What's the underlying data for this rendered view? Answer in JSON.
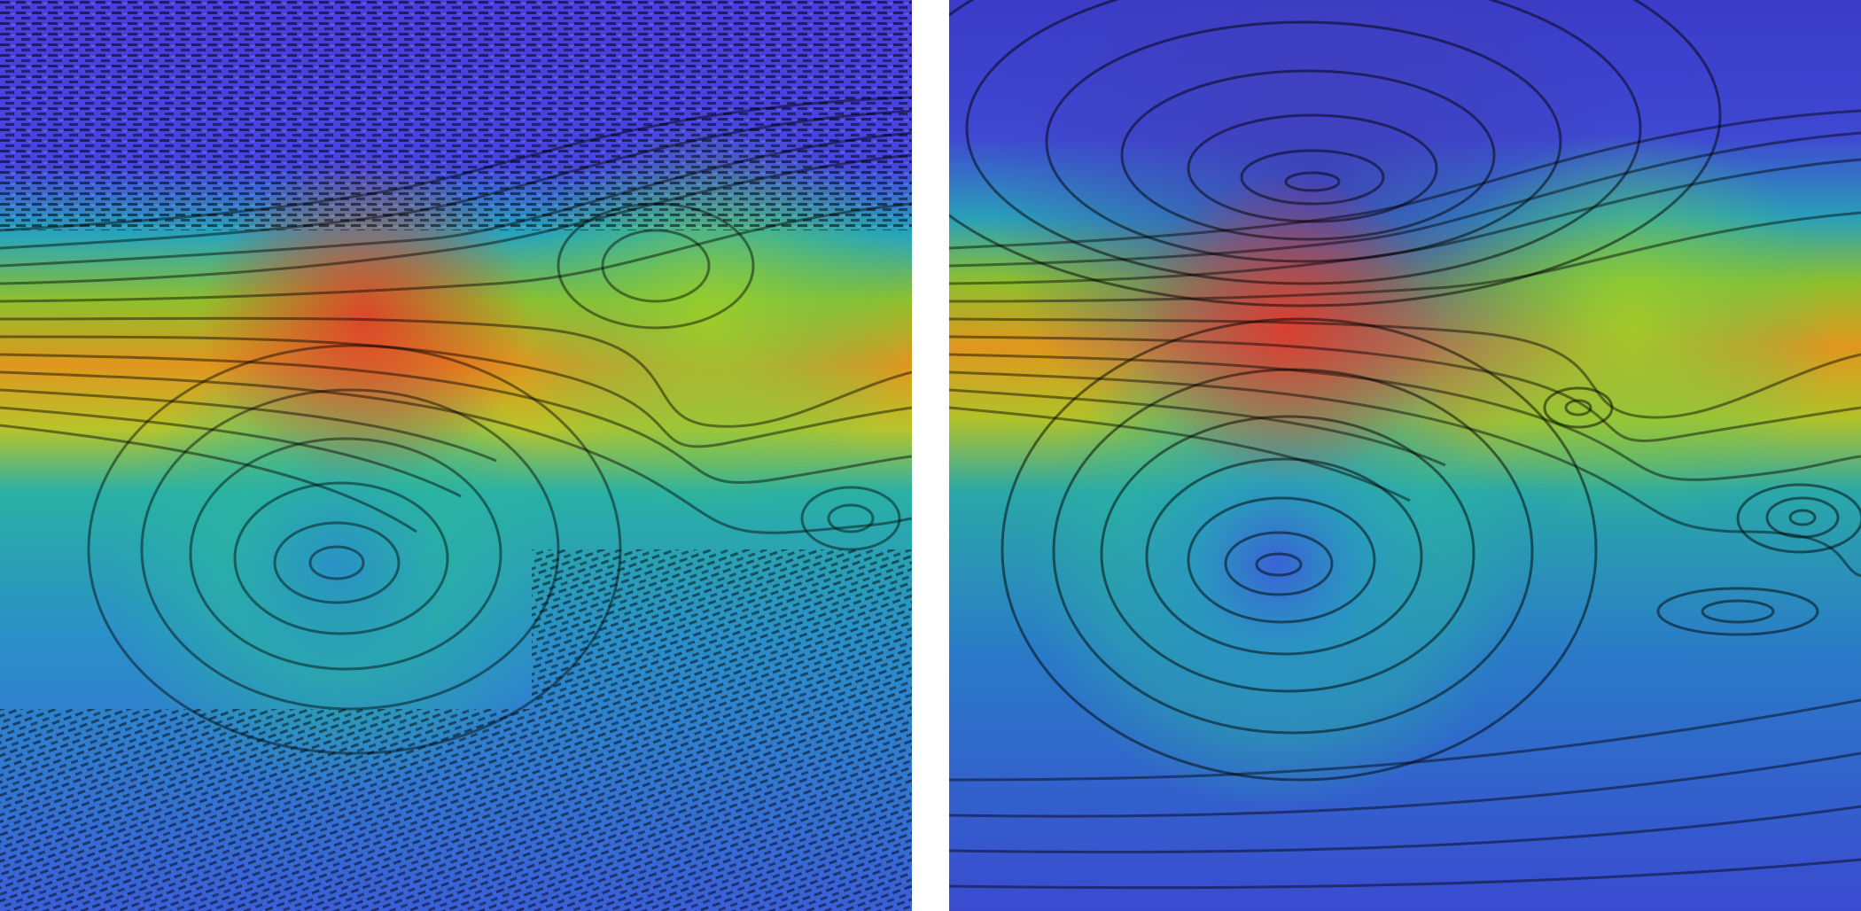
{
  "figure": {
    "panels": [
      {
        "id": "left",
        "rendering": "noisy-lic",
        "colormap": [
          "#3b3fd8",
          "#3a6fe0",
          "#2aa6b8",
          "#4cc36a",
          "#b8c82a",
          "#e89a1c",
          "#e2402a"
        ]
      },
      {
        "id": "right",
        "rendering": "smooth-lic",
        "colormap": [
          "#3b3fd8",
          "#3a6fe0",
          "#2aa6b8",
          "#4cc36a",
          "#b8c82a",
          "#e89a1c",
          "#e2402a"
        ]
      }
    ]
  }
}
